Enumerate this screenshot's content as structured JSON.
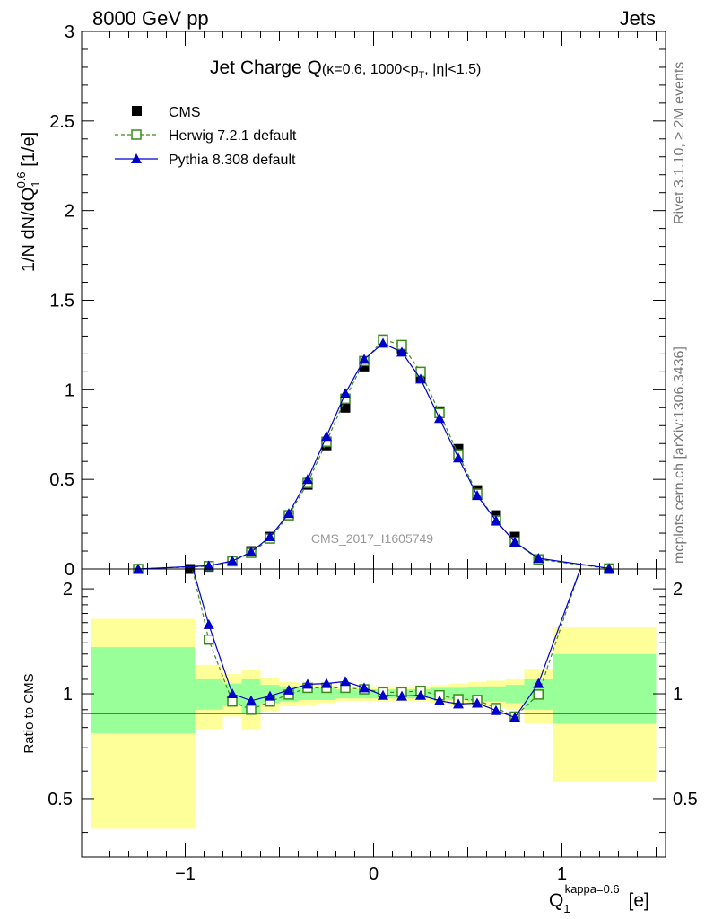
{
  "header": {
    "left": "8000 GeV pp",
    "right": "Jets"
  },
  "title": {
    "main": "Jet Charge Q",
    "condition": "(κ=0.6, 1000<p",
    "condition_sub": "T",
    "condition_tail": ", |η|<1.5)"
  },
  "side_labels": {
    "rivet": "Rivet 3.1.10, ≥ 2M events",
    "mcplots": "mcplots.cern.ch [arXiv:1306.3436]"
  },
  "watermark": "CMS_2017_I1605749",
  "axes": {
    "top_ylabel": "1/N dN/dQ",
    "top_ylabel_sup": "0.6",
    "top_ylabel_sub": "1",
    "top_ylabel_tail": " [1/e]",
    "bottom_ylabel": "Ratio to CMS",
    "xlabel": "Q",
    "xlabel_sup": "kappa=0.6",
    "xlabel_sub": "1",
    "xlabel_tail": " [e]"
  },
  "legend": {
    "cms": "CMS",
    "herwig": "Herwig 7.2.1 default",
    "pythia": "Pythia 8.308 default"
  },
  "colors": {
    "data": "#000000",
    "herwig": "#3a8a1a",
    "pythia": "#0000cc",
    "band_inner": "#99ff99",
    "band_outer": "#ffff99",
    "watermark": "#999999"
  },
  "chart_data": {
    "type": "line",
    "main": {
      "xlim": [
        -1.55,
        1.55
      ],
      "ylim": [
        0,
        3
      ],
      "yticks": [
        0,
        0.5,
        1,
        1.5,
        2,
        2.5,
        3
      ],
      "ytick_labels": [
        "0",
        "0.5",
        "1",
        "1.5",
        "2",
        "2.5",
        "3"
      ],
      "series": [
        {
          "name": "CMS",
          "marker": "filled-square",
          "x": [
            -1.25,
            -0.975,
            -0.875,
            -0.75,
            -0.65,
            -0.55,
            -0.45,
            -0.35,
            -0.25,
            -0.15,
            -0.05,
            0.05,
            0.15,
            0.25,
            0.35,
            0.45,
            0.55,
            0.65,
            0.75,
            0.875,
            1.25
          ],
          "y": [
            0.0,
            0.0,
            0.012,
            0.045,
            0.1,
            0.18,
            0.3,
            0.47,
            0.69,
            0.9,
            1.13,
            1.28,
            1.23,
            1.07,
            0.88,
            0.67,
            0.44,
            0.3,
            0.18,
            0.055,
            0.0
          ]
        },
        {
          "name": "Herwig 7.2.1 default",
          "marker": "open-square",
          "dashed": true,
          "x": [
            -1.25,
            -0.875,
            -0.75,
            -0.65,
            -0.55,
            -0.45,
            -0.35,
            -0.25,
            -0.15,
            -0.05,
            0.05,
            0.15,
            0.25,
            0.35,
            0.45,
            0.55,
            0.65,
            0.75,
            0.875,
            1.25
          ],
          "y": [
            0.0,
            0.016,
            0.043,
            0.09,
            0.17,
            0.3,
            0.48,
            0.71,
            0.95,
            1.16,
            1.28,
            1.25,
            1.1,
            0.87,
            0.64,
            0.42,
            0.27,
            0.15,
            0.054,
            0.003
          ]
        },
        {
          "name": "Pythia 8.308 default",
          "marker": "filled-triangle",
          "x": [
            -1.25,
            -0.875,
            -0.75,
            -0.65,
            -0.55,
            -0.45,
            -0.35,
            -0.25,
            -0.15,
            -0.05,
            0.05,
            0.15,
            0.25,
            0.35,
            0.45,
            0.55,
            0.65,
            0.75,
            0.875,
            1.25
          ],
          "y": [
            0.0,
            0.018,
            0.045,
            0.095,
            0.18,
            0.31,
            0.5,
            0.74,
            0.98,
            1.17,
            1.26,
            1.21,
            1.06,
            0.84,
            0.62,
            0.41,
            0.27,
            0.15,
            0.06,
            0.004
          ]
        }
      ]
    },
    "ratio": {
      "ylim": [
        0.34,
        2.28
      ],
      "ylabel": "Ratio to CMS",
      "yticks": [
        0.5,
        1,
        2
      ],
      "ytick_labels": [
        "0.5",
        "1",
        "2"
      ],
      "xticks": [
        -1,
        0,
        1
      ],
      "xtick_labels": [
        "−1",
        "0",
        "1"
      ],
      "bands": [
        {
          "x0": -1.5,
          "x1": -0.95,
          "inner": [
            0.77,
            1.36
          ],
          "outer": [
            0.41,
            1.64
          ]
        },
        {
          "x0": -0.95,
          "x1": -0.8,
          "inner": [
            0.9,
            1.1
          ],
          "outer": [
            0.79,
            1.21
          ]
        },
        {
          "x0": -0.8,
          "x1": -0.7,
          "inner": [
            0.93,
            1.07
          ],
          "outer": [
            0.86,
            1.14
          ]
        },
        {
          "x0": -0.7,
          "x1": -0.6,
          "inner": [
            0.88,
            1.1
          ],
          "outer": [
            0.79,
            1.17
          ]
        },
        {
          "x0": -0.6,
          "x1": -0.5,
          "inner": [
            0.94,
            1.06
          ],
          "outer": [
            0.89,
            1.11
          ]
        },
        {
          "x0": -0.5,
          "x1": -0.4,
          "inner": [
            0.95,
            1.05
          ],
          "outer": [
            0.92,
            1.08
          ]
        },
        {
          "x0": -0.4,
          "x1": -0.3,
          "inner": [
            0.96,
            1.04
          ],
          "outer": [
            0.93,
            1.07
          ]
        },
        {
          "x0": -0.3,
          "x1": -0.2,
          "inner": [
            0.96,
            1.04
          ],
          "outer": [
            0.94,
            1.06
          ]
        },
        {
          "x0": -0.2,
          "x1": -0.1,
          "inner": [
            0.97,
            1.03
          ],
          "outer": [
            0.95,
            1.05
          ]
        },
        {
          "x0": -0.1,
          "x1": 0.0,
          "inner": [
            0.97,
            1.03
          ],
          "outer": [
            0.95,
            1.05
          ]
        },
        {
          "x0": 0.0,
          "x1": 0.1,
          "inner": [
            0.97,
            1.03
          ],
          "outer": [
            0.95,
            1.05
          ]
        },
        {
          "x0": 0.1,
          "x1": 0.2,
          "inner": [
            0.97,
            1.03
          ],
          "outer": [
            0.95,
            1.05
          ]
        },
        {
          "x0": 0.2,
          "x1": 0.3,
          "inner": [
            0.97,
            1.03
          ],
          "outer": [
            0.95,
            1.05
          ]
        },
        {
          "x0": 0.3,
          "x1": 0.4,
          "inner": [
            0.96,
            1.04
          ],
          "outer": [
            0.94,
            1.06
          ]
        },
        {
          "x0": 0.4,
          "x1": 0.5,
          "inner": [
            0.96,
            1.04
          ],
          "outer": [
            0.93,
            1.07
          ]
        },
        {
          "x0": 0.5,
          "x1": 0.6,
          "inner": [
            0.95,
            1.05
          ],
          "outer": [
            0.92,
            1.08
          ]
        },
        {
          "x0": 0.6,
          "x1": 0.7,
          "inner": [
            0.95,
            1.05
          ],
          "outer": [
            0.91,
            1.09
          ]
        },
        {
          "x0": 0.7,
          "x1": 0.8,
          "inner": [
            0.94,
            1.06
          ],
          "outer": [
            0.9,
            1.1
          ]
        },
        {
          "x0": 0.8,
          "x1": 0.95,
          "inner": [
            0.9,
            1.1
          ],
          "outer": [
            0.82,
            1.18
          ]
        },
        {
          "x0": 0.95,
          "x1": 1.5,
          "inner": [
            0.82,
            1.3
          ],
          "outer": [
            0.56,
            1.55
          ]
        }
      ],
      "reference_line": 1,
      "series": [
        {
          "name": "Herwig 7.2.1 default",
          "dashed": true,
          "x": [
            -0.975,
            -0.875,
            -0.75,
            -0.65,
            -0.55,
            -0.45,
            -0.35,
            -0.25,
            -0.15,
            -0.05,
            0.05,
            0.15,
            0.25,
            0.35,
            0.45,
            0.55,
            0.65,
            0.75,
            0.875,
            1.1
          ],
          "y": [
            2.45,
            1.43,
            0.95,
            0.9,
            0.95,
            0.995,
            1.04,
            1.04,
            1.04,
            1.03,
            1.01,
            1.01,
            1.02,
            0.99,
            0.965,
            0.96,
            0.91,
            0.86,
            0.995,
            2.3
          ]
        },
        {
          "name": "Pythia 8.308 default",
          "x": [
            -0.975,
            -0.875,
            -0.75,
            -0.65,
            -0.55,
            -0.45,
            -0.35,
            -0.25,
            -0.15,
            -0.05,
            0.05,
            0.15,
            0.25,
            0.35,
            0.45,
            0.55,
            0.65,
            0.75,
            0.875,
            1.1
          ],
          "y": [
            2.45,
            1.58,
            1.0,
            0.955,
            0.985,
            1.025,
            1.065,
            1.07,
            1.085,
            1.04,
            0.99,
            0.985,
            0.99,
            0.955,
            0.935,
            0.94,
            0.895,
            0.855,
            1.07,
            2.3
          ]
        }
      ]
    }
  }
}
